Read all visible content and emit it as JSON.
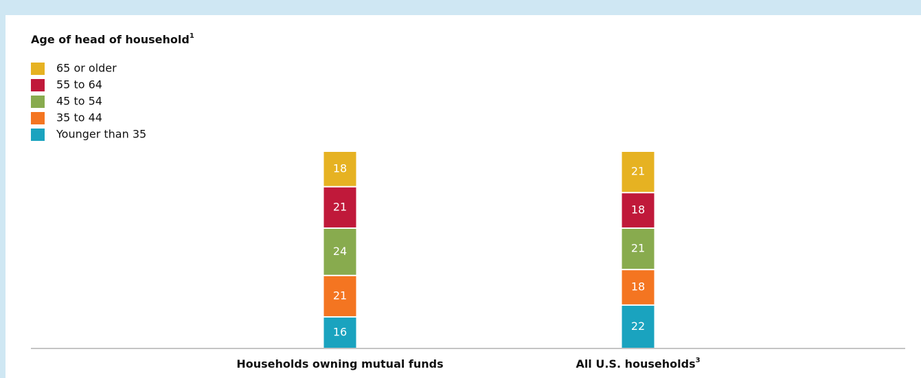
{
  "chart_data": {
    "type": "stacked_bar",
    "title": "Age of head of household",
    "title_footnote": "1",
    "categories": [
      "Households owning mutual funds",
      "All U.S. households"
    ],
    "category_footnotes": [
      null,
      "3"
    ],
    "series": [
      {
        "name": "65 or older",
        "color": "#e6b222",
        "values": [
          18,
          21
        ]
      },
      {
        "name": "55 to 64",
        "color": "#c0193a",
        "values": [
          21,
          18
        ]
      },
      {
        "name": "45 to 54",
        "color": "#88ab4e",
        "values": [
          24,
          21
        ]
      },
      {
        "name": "35 to 44",
        "color": "#f47521",
        "values": [
          21,
          18
        ]
      },
      {
        "name": "Younger than 35",
        "color": "#1aa3bf",
        "values": [
          16,
          22
        ]
      }
    ],
    "ylim": [
      0,
      100
    ]
  }
}
